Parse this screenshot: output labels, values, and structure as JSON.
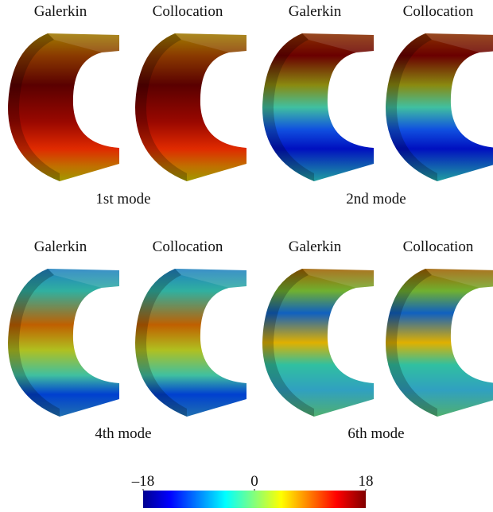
{
  "modes": [
    {
      "caption": "1st mode",
      "methods": [
        "Galerkin",
        "Collocation"
      ]
    },
    {
      "caption": "2nd mode",
      "methods": [
        "Galerkin",
        "Collocation"
      ]
    },
    {
      "caption": "4th mode",
      "methods": [
        "Galerkin",
        "Collocation"
      ]
    },
    {
      "caption": "6th mode",
      "methods": [
        "Galerkin",
        "Collocation"
      ]
    }
  ],
  "colorbar": {
    "ticks": [
      {
        "value": -18,
        "label": "–18"
      },
      0,
      18
    ]
  }
}
